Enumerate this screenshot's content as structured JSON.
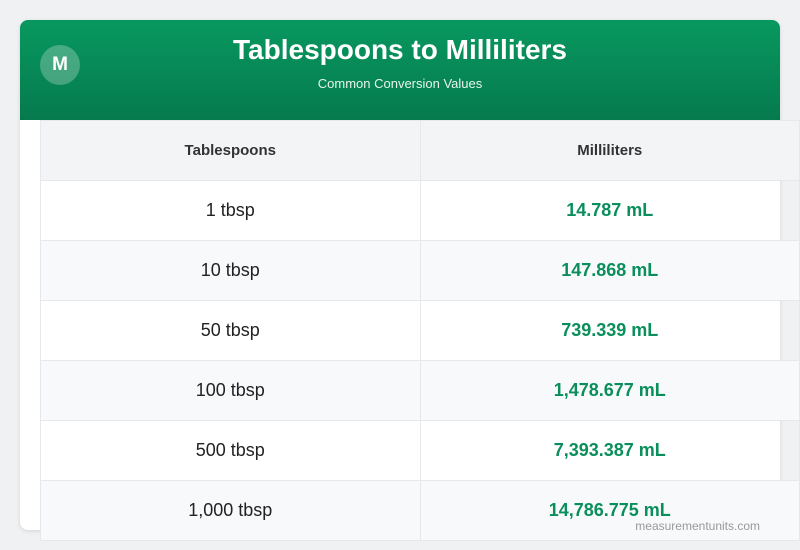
{
  "header": {
    "logo": "M",
    "title": "Tablespoons to Milliliters",
    "subtitle": "Common Conversion Values"
  },
  "table": {
    "columns": [
      "Tablespoons",
      "Milliliters"
    ],
    "rows": [
      [
        "1 tbsp",
        "14.787 mL"
      ],
      [
        "10 tbsp",
        "147.868 mL"
      ],
      [
        "50 tbsp",
        "739.339 mL"
      ],
      [
        "100 tbsp",
        "1,478.677 mL"
      ],
      [
        "500 tbsp",
        "7,393.387 mL"
      ],
      [
        "1,000 tbsp",
        "14,786.775 mL"
      ]
    ]
  },
  "footer": "measurementunits.com"
}
